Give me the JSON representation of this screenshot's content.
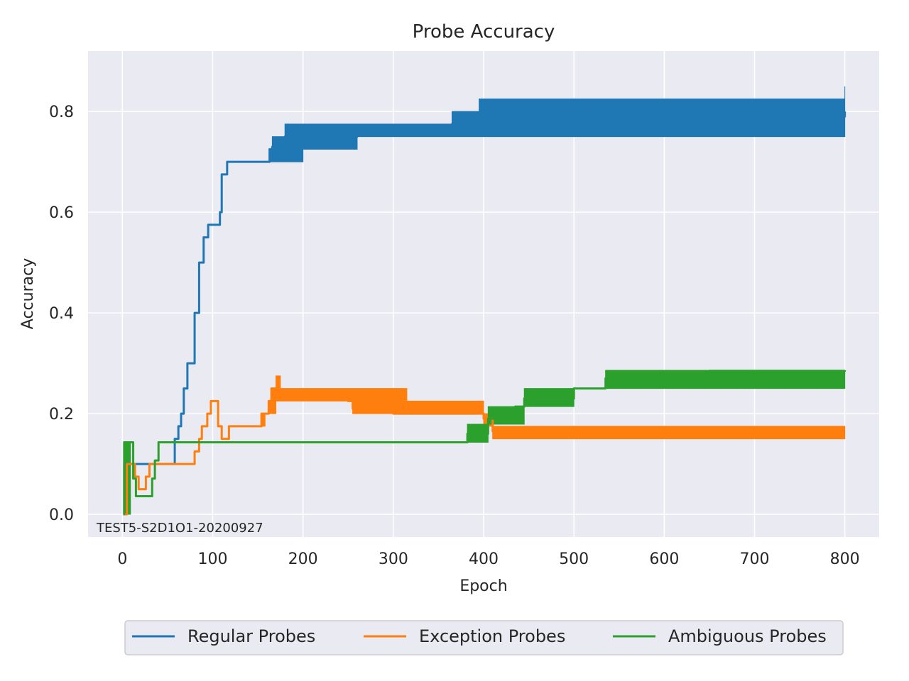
{
  "chart_data": {
    "type": "line",
    "title": "Probe Accuracy",
    "xlabel": "Epoch",
    "ylabel": "Accuracy",
    "xlim": [
      -38,
      838
    ],
    "ylim": [
      -0.045,
      0.92
    ],
    "xticks": [
      0,
      100,
      200,
      300,
      400,
      500,
      600,
      700,
      800
    ],
    "yticks": [
      0.0,
      0.2,
      0.4,
      0.6,
      0.8
    ],
    "ytick_labels": [
      "0.0",
      "0.2",
      "0.4",
      "0.6",
      "0.8"
    ],
    "grid": true,
    "legend_position": "bottom-center",
    "annotation": "TEST5-S2D1O1-20200927",
    "series": [
      {
        "name": "Regular Probes",
        "color": "#1f77b4",
        "x": [
          1,
          2,
          6,
          8,
          10,
          55,
          58,
          62,
          65,
          68,
          72,
          75,
          80,
          85,
          90,
          95,
          100,
          105,
          108,
          110,
          113,
          116,
          160,
          163,
          166,
          170,
          180,
          200,
          260,
          300,
          365,
          395,
          800
        ],
        "y": [
          0.0,
          0.1,
          0.1,
          0.1,
          0.1,
          0.1,
          0.15,
          0.175,
          0.2,
          0.25,
          0.3,
          0.3,
          0.4,
          0.5,
          0.55,
          0.575,
          0.575,
          0.575,
          0.6,
          0.675,
          0.675,
          0.7,
          0.7,
          0.725,
          0.73,
          0.74,
          0.75,
          0.75,
          0.76,
          0.765,
          0.775,
          0.79,
          0.8
        ],
        "band_low": [
          0.0,
          0.1,
          0.1,
          0.1,
          0.1,
          0.1,
          0.15,
          0.175,
          0.2,
          0.25,
          0.3,
          0.3,
          0.4,
          0.5,
          0.55,
          0.575,
          0.575,
          0.575,
          0.6,
          0.675,
          0.675,
          0.7,
          0.7,
          0.7,
          0.7,
          0.7,
          0.7,
          0.725,
          0.75,
          0.75,
          0.75,
          0.75,
          0.75
        ],
        "band_high": [
          0.0,
          0.1,
          0.1,
          0.1,
          0.1,
          0.1,
          0.15,
          0.175,
          0.2,
          0.25,
          0.3,
          0.3,
          0.4,
          0.5,
          0.55,
          0.575,
          0.575,
          0.575,
          0.6,
          0.675,
          0.675,
          0.7,
          0.7,
          0.725,
          0.75,
          0.75,
          0.775,
          0.775,
          0.775,
          0.775,
          0.8,
          0.825,
          0.85
        ]
      },
      {
        "name": "Exception Probes",
        "color": "#ff7f0e",
        "x": [
          1,
          5,
          10,
          14,
          18,
          22,
          26,
          30,
          35,
          78,
          80,
          85,
          88,
          90,
          94,
          98,
          102,
          106,
          110,
          114,
          118,
          150,
          154,
          158,
          162,
          165,
          170,
          175,
          250,
          255,
          300,
          315,
          400,
          410,
          800
        ],
        "y": [
          0.0,
          0.1,
          0.1,
          0.075,
          0.05,
          0.05,
          0.075,
          0.1,
          0.1,
          0.1,
          0.125,
          0.15,
          0.175,
          0.175,
          0.2,
          0.225,
          0.225,
          0.175,
          0.15,
          0.15,
          0.175,
          0.175,
          0.2,
          0.2,
          0.225,
          0.25,
          0.24,
          0.235,
          0.225,
          0.21,
          0.2,
          0.2,
          0.19,
          0.165,
          0.165
        ],
        "band_low": [
          0.0,
          0.1,
          0.1,
          0.075,
          0.05,
          0.05,
          0.075,
          0.1,
          0.1,
          0.1,
          0.125,
          0.15,
          0.175,
          0.175,
          0.2,
          0.225,
          0.225,
          0.175,
          0.15,
          0.15,
          0.175,
          0.175,
          0.175,
          0.2,
          0.2,
          0.2,
          0.225,
          0.225,
          0.225,
          0.2,
          0.2,
          0.2,
          0.175,
          0.15,
          0.15
        ],
        "band_high": [
          0.0,
          0.1,
          0.1,
          0.075,
          0.05,
          0.05,
          0.075,
          0.1,
          0.1,
          0.1,
          0.125,
          0.15,
          0.175,
          0.175,
          0.2,
          0.225,
          0.225,
          0.175,
          0.15,
          0.15,
          0.175,
          0.175,
          0.2,
          0.2,
          0.225,
          0.25,
          0.275,
          0.25,
          0.25,
          0.25,
          0.25,
          0.225,
          0.2,
          0.175,
          0.175
        ]
      },
      {
        "name": "Ambiguous Probes",
        "color": "#2ca02c",
        "x": [
          1,
          2,
          9,
          12,
          15,
          30,
          33,
          36,
          40,
          365,
          382,
          405,
          435,
          445,
          500,
          535,
          650,
          800
        ],
        "y": [
          0.0,
          0.143,
          0.143,
          0.071,
          0.036,
          0.036,
          0.071,
          0.107,
          0.143,
          0.143,
          0.16,
          0.19,
          0.214,
          0.23,
          0.25,
          0.27,
          0.285,
          0.286
        ],
        "band_low": [
          0.0,
          0.0,
          0.143,
          0.071,
          0.036,
          0.036,
          0.071,
          0.107,
          0.143,
          0.143,
          0.143,
          0.179,
          0.179,
          0.214,
          0.25,
          0.25,
          0.25,
          0.286
        ],
        "band_high": [
          0.0,
          0.143,
          0.143,
          0.071,
          0.036,
          0.036,
          0.071,
          0.107,
          0.143,
          0.143,
          0.179,
          0.214,
          0.214,
          0.25,
          0.25,
          0.286,
          0.286,
          0.286
        ]
      }
    ]
  }
}
